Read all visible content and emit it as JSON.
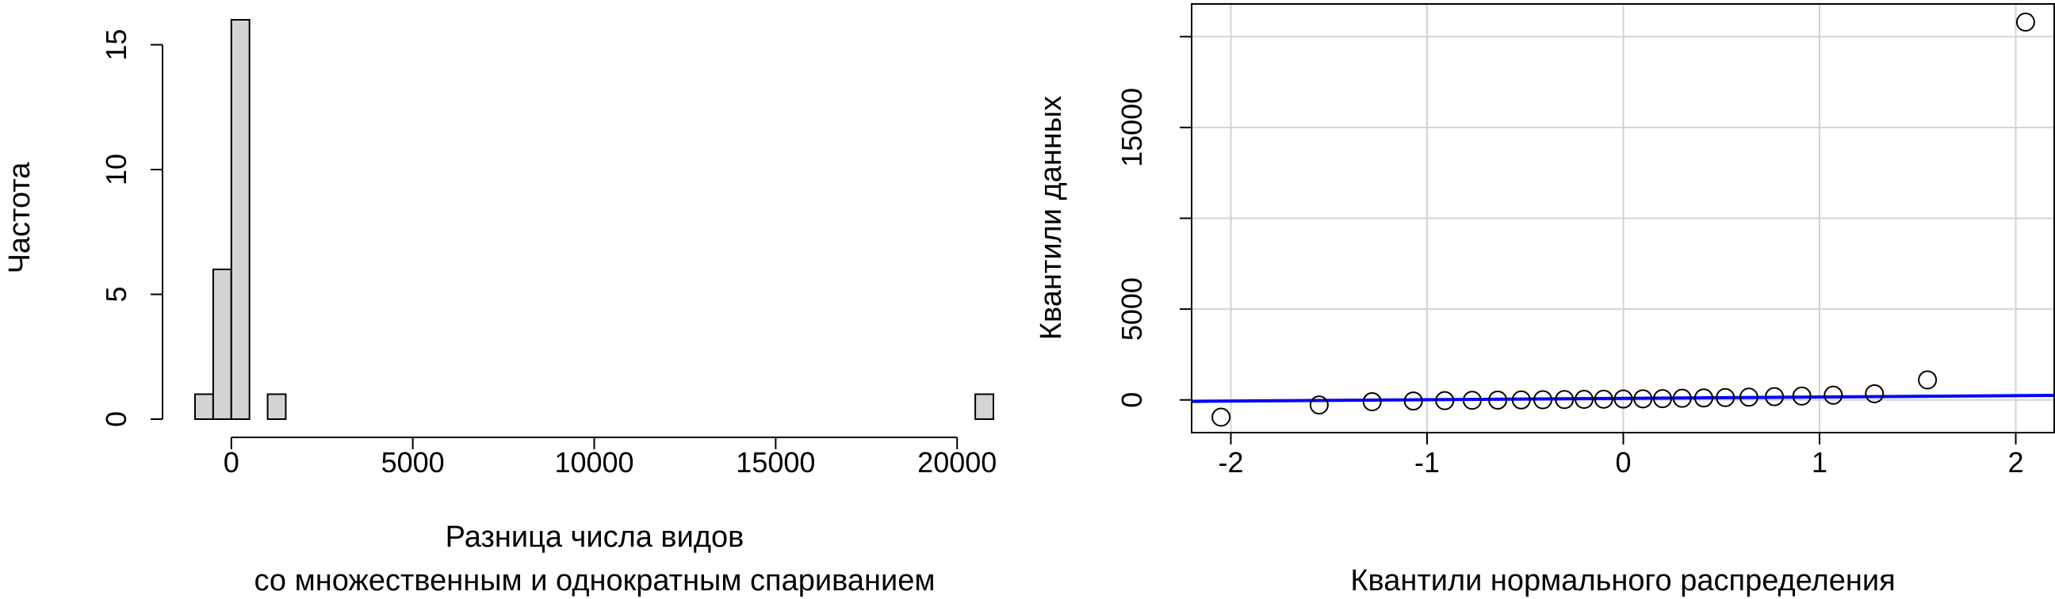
{
  "chart_data": [
    {
      "type": "bar",
      "title": "",
      "xlabel_lines": [
        "Разница числа видов",
        "со множественным и однократным спариванием"
      ],
      "ylabel": "Частота",
      "xlim": [
        -1000,
        21000
      ],
      "ylim": [
        0,
        16
      ],
      "x_ticks": [
        0,
        5000,
        10000,
        15000,
        20000
      ],
      "x_tick_labels": [
        "0",
        "5000",
        "10000",
        "15000",
        "20000"
      ],
      "y_ticks": [
        0,
        5,
        10,
        15
      ],
      "y_tick_labels": [
        "0",
        "5",
        "10",
        "15"
      ],
      "bins": [
        {
          "start": -1000,
          "end": -500,
          "count": 1
        },
        {
          "start": -500,
          "end": 0,
          "count": 6
        },
        {
          "start": 0,
          "end": 500,
          "count": 16
        },
        {
          "start": 500,
          "end": 1000,
          "count": 0
        },
        {
          "start": 1000,
          "end": 1500,
          "count": 1
        },
        {
          "start": 20500,
          "end": 21000,
          "count": 1
        }
      ],
      "bar_color": "#d3d3d3",
      "grid": false
    },
    {
      "type": "scatter",
      "title": "",
      "xlabel": "Квантили нормального распределения",
      "ylabel": "Квантили данных",
      "xlim": [
        -2.2,
        2.2
      ],
      "ylim": [
        -1800,
        21800
      ],
      "x_ticks": [
        -2,
        -1,
        0,
        1,
        2
      ],
      "x_tick_labels": [
        "-2",
        "-1",
        "0",
        "1",
        "2"
      ],
      "y_ticks": [
        0,
        5000,
        15000
      ],
      "y_tick_labels": [
        "0",
        "5000",
        "15000"
      ],
      "y_grid": [
        0,
        5000,
        10000,
        15000,
        20000
      ],
      "grid": true,
      "points": {
        "x": [
          -2.05,
          -1.55,
          -1.28,
          -1.07,
          -0.91,
          -0.77,
          -0.64,
          -0.52,
          -0.41,
          -0.3,
          -0.2,
          -0.1,
          0.0,
          0.1,
          0.2,
          0.3,
          0.41,
          0.52,
          0.64,
          0.77,
          0.91,
          1.07,
          1.28,
          1.55,
          2.05
        ],
        "y": [
          -950,
          -280,
          -100,
          -60,
          -40,
          -20,
          -10,
          0,
          10,
          20,
          30,
          40,
          50,
          60,
          70,
          90,
          110,
          130,
          150,
          180,
          210,
          260,
          340,
          1100,
          20800
        ]
      },
      "reference_line": {
        "x": [
          -2.2,
          2.2
        ],
        "y": [
          -80,
          250
        ],
        "color": "#0000ff"
      },
      "point_color": "#000000"
    }
  ]
}
